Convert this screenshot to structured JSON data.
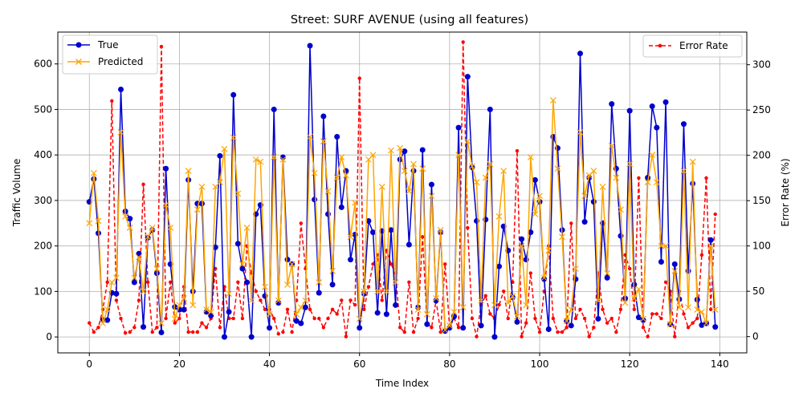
{
  "chart_data": {
    "type": "line",
    "title": "Street: SURF AVENUE (using all features)",
    "xlabel": "Time Index",
    "ylabel": "Traffic Volume",
    "y2label": "Error Rate (%)",
    "xlim": [
      -7,
      146
    ],
    "ylim": [
      -35,
      670
    ],
    "y2lim": [
      -18,
      336
    ],
    "xticks": [
      0,
      20,
      40,
      60,
      80,
      100,
      120,
      140
    ],
    "yticks": [
      0,
      100,
      200,
      300,
      400,
      500,
      600
    ],
    "y2ticks": [
      0,
      50,
      100,
      150,
      200,
      250,
      300
    ],
    "grid": true,
    "legend_left": {
      "position": "top-left",
      "entries": [
        "True",
        "Predicted"
      ]
    },
    "legend_right": {
      "position": "top-right",
      "entries": [
        "Error Rate"
      ]
    },
    "colors": {
      "true": "#0000cd",
      "predicted": "#ffa500",
      "error": "#ff0000"
    },
    "x": [
      0,
      1,
      2,
      3,
      4,
      5,
      6,
      7,
      8,
      9,
      10,
      11,
      12,
      13,
      14,
      15,
      16,
      17,
      18,
      19,
      20,
      21,
      22,
      23,
      24,
      25,
      26,
      27,
      28,
      29,
      30,
      31,
      32,
      33,
      34,
      35,
      36,
      37,
      38,
      39,
      40,
      41,
      42,
      43,
      44,
      45,
      46,
      47,
      48,
      49,
      50,
      51,
      52,
      53,
      54,
      55,
      56,
      57,
      58,
      59,
      60,
      61,
      62,
      63,
      64,
      65,
      66,
      67,
      68,
      69,
      70,
      71,
      72,
      73,
      74,
      75,
      76,
      77,
      78,
      79,
      80,
      81,
      82,
      83,
      84,
      85,
      86,
      87,
      88,
      89,
      90,
      91,
      92,
      93,
      94,
      95,
      96,
      97,
      98,
      99,
      100,
      101,
      102,
      103,
      104,
      105,
      106,
      107,
      108,
      109,
      110,
      111,
      112,
      113,
      114,
      115,
      116,
      117,
      118,
      119,
      120,
      121,
      122,
      123,
      124,
      125,
      126,
      127,
      128,
      129,
      130,
      131,
      132,
      133,
      134,
      135,
      136,
      137,
      138,
      139
    ],
    "series": [
      {
        "name": "True",
        "axis": "left",
        "values": [
          297,
          347,
          228,
          37,
          37,
          97,
          95,
          544,
          276,
          260,
          120,
          183,
          22,
          218,
          235,
          140,
          10,
          370,
          160,
          66,
          60,
          60,
          345,
          100,
          293,
          293,
          55,
          47,
          197,
          398,
          0,
          55,
          532,
          205,
          150,
          120,
          0,
          270,
          290,
          90,
          20,
          500,
          75,
          395,
          170,
          160,
          35,
          30,
          65,
          640,
          302,
          97,
          485,
          270,
          115,
          440,
          285,
          365,
          170,
          225,
          20,
          95,
          255,
          230,
          53,
          233,
          50,
          235,
          70,
          390,
          408,
          203,
          365,
          65,
          411,
          28,
          335,
          80,
          230,
          13,
          20,
          45,
          460,
          20,
          572,
          373,
          255,
          25,
          258,
          500,
          0,
          155,
          243,
          190,
          87,
          33,
          215,
          170,
          230,
          345,
          297,
          127,
          17,
          440,
          415,
          235,
          35,
          25,
          127,
          623,
          253,
          350,
          297,
          40,
          250,
          130,
          512,
          370,
          222,
          85,
          497,
          115,
          43,
          37,
          350,
          507,
          460,
          165,
          516,
          28,
          160,
          83,
          468,
          145,
          337,
          82,
          26,
          30,
          213,
          22
        ]
      },
      {
        "name": "Predicted",
        "axis": "left",
        "values": [
          250,
          360,
          255,
          30,
          60,
          120,
          130,
          450,
          265,
          240,
          130,
          175,
          100,
          220,
          240,
          150,
          30,
          290,
          240,
          40,
          70,
          85,
          365,
          70,
          280,
          330,
          60,
          55,
          330,
          340,
          413,
          95,
          438,
          315,
          160,
          240,
          80,
          390,
          385,
          110,
          50,
          395,
          80,
          390,
          115,
          160,
          50,
          65,
          80,
          440,
          360,
          120,
          430,
          320,
          145,
          350,
          395,
          355,
          220,
          295,
          40,
          100,
          390,
          400,
          100,
          330,
          100,
          410,
          120,
          415,
          365,
          320,
          380,
          60,
          370,
          50,
          310,
          85,
          235,
          15,
          25,
          55,
          400,
          65,
          430,
          375,
          340,
          80,
          350,
          380,
          70,
          265,
          365,
          75,
          90,
          45,
          200,
          70,
          395,
          270,
          310,
          130,
          190,
          520,
          370,
          220,
          35,
          60,
          150,
          450,
          310,
          355,
          365,
          80,
          330,
          140,
          420,
          350,
          280,
          75,
          380,
          85,
          105,
          40,
          340,
          400,
          340,
          200,
          200,
          28,
          145,
          65,
          365,
          65,
          385,
          60,
          55,
          30,
          200,
          60
        ]
      },
      {
        "name": "Error Rate",
        "axis": "right",
        "values": [
          15,
          5,
          10,
          30,
          60,
          260,
          40,
          20,
          4,
          5,
          10,
          40,
          168,
          60,
          5,
          10,
          320,
          20,
          60,
          15,
          20,
          55,
          5,
          5,
          5,
          15,
          10,
          20,
          75,
          10,
          55,
          20,
          20,
          60,
          20,
          100,
          70,
          50,
          40,
          30,
          30,
          20,
          3,
          5,
          30,
          5,
          40,
          125,
          75,
          30,
          20,
          20,
          10,
          20,
          30,
          25,
          40,
          0,
          40,
          35,
          285,
          30,
          55,
          80,
          90,
          40,
          95,
          80,
          70,
          10,
          5,
          60,
          5,
          20,
          110,
          15,
          10,
          40,
          5,
          80,
          10,
          20,
          10,
          325,
          120,
          20,
          0,
          35,
          45,
          25,
          20,
          35,
          50,
          20,
          60,
          205,
          0,
          15,
          70,
          20,
          5,
          50,
          100,
          20,
          5,
          5,
          10,
          125,
          20,
          30,
          20,
          0,
          10,
          70,
          30,
          15,
          20,
          5,
          30,
          90,
          75,
          30,
          175,
          10,
          0,
          25,
          25,
          20,
          60,
          50,
          0,
          50,
          25,
          10,
          15,
          20,
          90,
          175,
          30,
          135
        ]
      }
    ]
  }
}
